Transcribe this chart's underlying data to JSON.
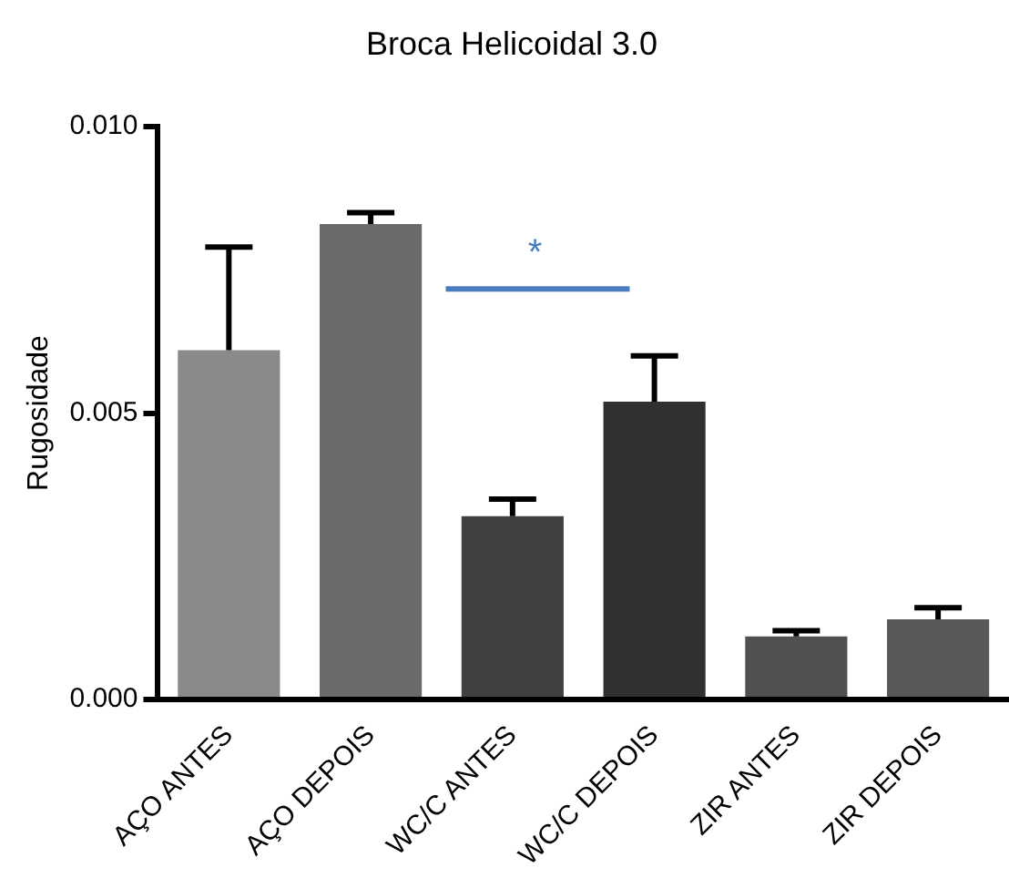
{
  "chart_data": {
    "type": "bar",
    "title": "Broca Helicoidal 3.0",
    "ylabel": "Rugosidade",
    "categories": [
      "AÇO ANTES",
      "AÇO DEPOIS",
      "WC/C ANTES",
      "WC/C DEPOIS",
      "ZIR ANTES",
      "ZIR DEPOIS"
    ],
    "values": [
      0.0061,
      0.0083,
      0.0032,
      0.0052,
      0.0011,
      0.0014
    ],
    "errors": [
      [
        0.0061,
        0.0079
      ],
      [
        0.0083,
        0.0085
      ],
      [
        0.0032,
        0.0035
      ],
      [
        0.0052,
        0.006
      ],
      [
        0.0011,
        0.0012
      ],
      [
        0.0014,
        0.0016
      ]
    ],
    "colors": [
      "#8a8a8a",
      "#6a6a6a",
      "#404040",
      "#303030",
      "#505050",
      "#585858"
    ],
    "ylim": [
      0,
      0.01
    ],
    "yticks": [
      {
        "value": 0,
        "label": "0.000"
      },
      {
        "value": 0.005,
        "label": "0.005"
      },
      {
        "value": 0.01,
        "label": "0.010"
      }
    ],
    "annotations": [
      "*"
    ],
    "grid": false,
    "legend": false
  }
}
